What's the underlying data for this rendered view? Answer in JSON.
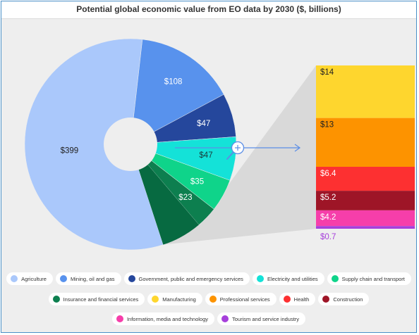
{
  "chart_data": {
    "type": "pie",
    "title": "Potential global economic value from EO data by 2030 ($, billions)",
    "slices": [
      {
        "label": "Agriculture",
        "value": 399,
        "display": "$399",
        "color": "#aac8fb",
        "text_color": "#222222"
      },
      {
        "label": "Mining, oil and gas",
        "value": 108,
        "display": "$108",
        "color": "#5892ed",
        "text_color": "#ffffff"
      },
      {
        "label": "Government, public and emergency services",
        "value": 47,
        "display": "$47",
        "color": "#25479c",
        "text_color": "#ffffff"
      },
      {
        "label": "Electricity and utilities",
        "value": 47,
        "display": "$47",
        "color": "#14e2d8",
        "text_color": "#1a3a3a"
      },
      {
        "label": "Supply chain and transport",
        "value": 35,
        "display": "$35",
        "color": "#0fd48a",
        "text_color": "#ffffff"
      },
      {
        "label": "Insurance and financial services",
        "value": 23,
        "display": "$23",
        "color": "#0d7f4f",
        "text_color": "#ffffff"
      }
    ],
    "breakdown": [
      {
        "label": "Manufacturing",
        "value": 14,
        "display": "$14",
        "color": "#fed62e",
        "text_color": "#222222"
      },
      {
        "label": "Professional services",
        "value": 13,
        "display": "$13",
        "color": "#fd9300",
        "text_color": "#222222"
      },
      {
        "label": "Health",
        "value": 6.4,
        "display": "$6.4",
        "color": "#fd3031",
        "text_color": "#ffffff"
      },
      {
        "label": "Construction",
        "value": 5.2,
        "display": "$5.2",
        "color": "#9e1527",
        "text_color": "#ffffff"
      },
      {
        "label": "Information, media and technology",
        "value": 4.2,
        "display": "$4.2",
        "color": "#f63eaa",
        "text_color": "#ffffff"
      },
      {
        "label": "Tourism and service industry",
        "value": 0.7,
        "display": "$0.7",
        "color": "#a63fdb",
        "text_color": "#a63fdb"
      }
    ],
    "other_wedge_color": "#076a41",
    "callout_color": "#d9d9d9",
    "arrow_color": "#5b8ee6",
    "legend_placement": "bottom",
    "legend": [
      [
        "Agriculture",
        "Mining, oil and gas",
        "Government, public and emergency services",
        "Electricity and utilities",
        "Supply chain and transport"
      ],
      [
        "Insurance and financial services",
        "Manufacturing",
        "Professional services",
        "Health",
        "Construction"
      ],
      [
        "Information, media and technology",
        "Tourism and service industry"
      ]
    ]
  }
}
